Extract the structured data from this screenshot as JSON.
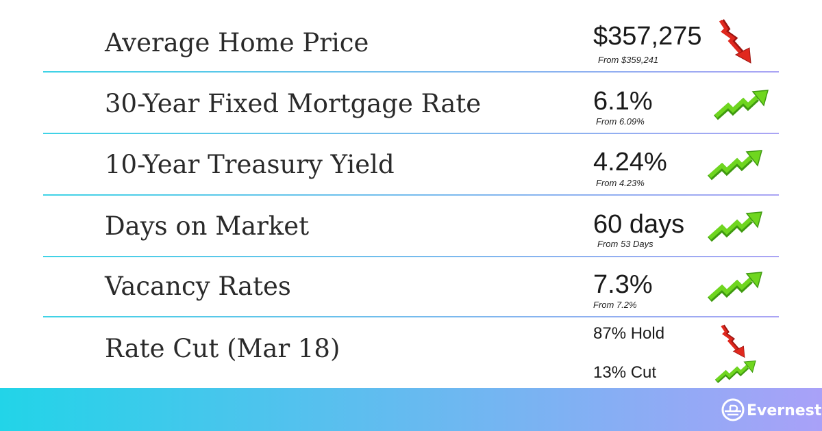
{
  "rows": [
    {
      "label": "Average Home Price",
      "value": "$357,275",
      "from": "From $359,241"
    },
    {
      "label": "30-Year Fixed Mortgage Rate",
      "value": "6.1%",
      "from": "From 6.09%"
    },
    {
      "label": "10-Year Treasury Yield",
      "value": "4.24%",
      "from": "From 4.23%"
    },
    {
      "label": "Days on Market",
      "value": "60 days",
      "from": "From 53 Days"
    },
    {
      "label": "Vacancy Rates",
      "value": "7.3%",
      "from": "From 7.2%"
    },
    {
      "label": "Rate Cut (Mar 18)",
      "values": [
        "87% Hold",
        "13% Cut"
      ]
    }
  ],
  "brand": "Evernest"
}
